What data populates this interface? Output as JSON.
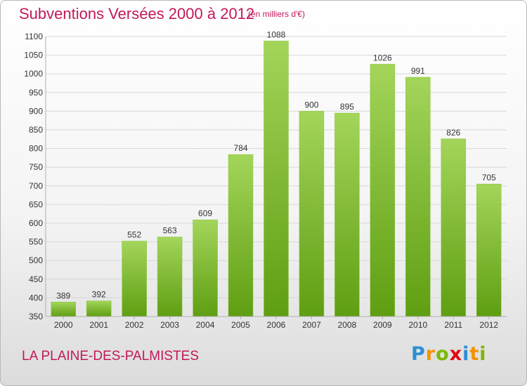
{
  "header": {
    "title": "Subventions Versées 2000 à 2012",
    "subtitle": "(en milliers d'€)"
  },
  "footer": {
    "commune": "LA PLAINE-DES-PALMISTES",
    "logo_letters": [
      "P",
      "r",
      "o",
      "x",
      "i",
      "t",
      "i"
    ],
    "logo_colors": [
      "#2b8fd6",
      "#f39200",
      "#7ab800",
      "#e30613",
      "#2b8fd6",
      "#f39200",
      "#7ab800"
    ]
  },
  "colors": {
    "title": "#c2185b",
    "bar_light": "#a3d55a",
    "bar_dark": "#5f9e12",
    "grid": "#d8d8d8",
    "axis_text": "#333333"
  },
  "chart_data": {
    "type": "bar",
    "categories": [
      "2000",
      "2001",
      "2002",
      "2003",
      "2004",
      "2005",
      "2006",
      "2007",
      "2008",
      "2009",
      "2010",
      "2011",
      "2012"
    ],
    "values": [
      389,
      392,
      552,
      563,
      609,
      784,
      1088,
      900,
      895,
      1026,
      991,
      826,
      705
    ],
    "title": "Subventions Versées 2000 à 2012",
    "ylim": [
      350,
      1100
    ],
    "yticks": [
      350,
      400,
      450,
      500,
      550,
      600,
      650,
      700,
      750,
      800,
      850,
      900,
      950,
      1000,
      1050,
      1100
    ],
    "grid": true
  }
}
